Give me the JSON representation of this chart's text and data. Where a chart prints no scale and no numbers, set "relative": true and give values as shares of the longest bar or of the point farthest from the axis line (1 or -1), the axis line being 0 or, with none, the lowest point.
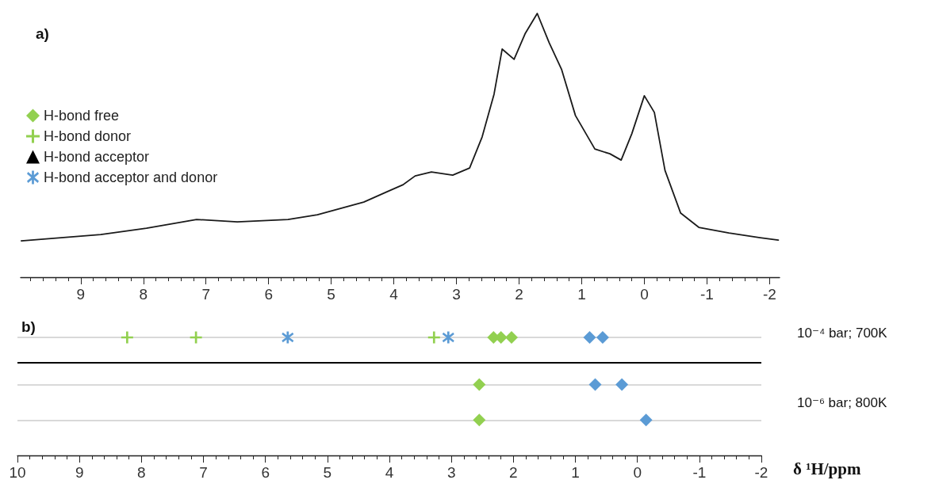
{
  "chart_data": [
    {
      "type": "line",
      "title": "a)",
      "relative": true,
      "xlim": [
        9.96,
        -2.16
      ],
      "xticks": [
        9,
        8,
        7,
        6,
        5,
        4,
        3,
        2,
        1,
        0,
        -1,
        -2
      ],
      "marker": "none",
      "line_style": "solid",
      "series": [
        {
          "color": "#1a1a1a",
          "x": [
            9.95,
            8.68,
            7.95,
            7.15,
            6.5,
            5.69,
            5.22,
            4.48,
            4.11,
            3.85,
            3.66,
            3.4,
            3.06,
            2.79,
            2.59,
            2.4,
            2.27,
            2.08,
            1.9,
            1.71,
            1.52,
            1.32,
            1.1,
            0.79,
            0.55,
            0.37,
            0.2,
            0,
            -0.16,
            -0.33,
            -0.58,
            -0.87,
            -1.35,
            -1.85,
            -2.14
          ],
          "values": [
            0.138,
            0.162,
            0.186,
            0.219,
            0.21,
            0.219,
            0.237,
            0.285,
            0.324,
            0.351,
            0.384,
            0.399,
            0.387,
            0.414,
            0.532,
            0.694,
            0.865,
            0.826,
            0.925,
            1,
            0.889,
            0.787,
            0.613,
            0.486,
            0.468,
            0.444,
            0.544,
            0.688,
            0.625,
            0.405,
            0.243,
            0.189,
            0.168,
            0.15,
            0.141
          ]
        }
      ]
    },
    {
      "type": "scatter",
      "title": "b)",
      "xlabel": "δ ¹H/ppm",
      "relative": true,
      "xlim": [
        10,
        -2
      ],
      "xticks": [
        10,
        9,
        8,
        7,
        6,
        5,
        4,
        3,
        2,
        1,
        0,
        -1,
        -2
      ],
      "legend": "top left",
      "annotations": [
        "10⁻⁴ bar; 700K",
        "10⁻⁶ bar; 800K"
      ],
      "ref_lines": [
        {
          "axis": "y",
          "value": 1,
          "color": "#d9d9d9"
        },
        {
          "axis": "y",
          "value": 0.79,
          "color": "#000000"
        },
        {
          "axis": "y",
          "value": 0.6,
          "color": "#d9d9d9"
        },
        {
          "axis": "y",
          "value": 0.3,
          "color": "#d9d9d9"
        }
      ],
      "series": [
        {
          "name": "H-bond free",
          "marker": "diamond",
          "x": [
            2.32,
            2.2,
            2.03,
            0.77,
            0.56,
            2.55,
            0.68,
            0.25,
            2.55,
            -0.14
          ],
          "values": [
            1,
            1,
            1,
            1,
            1,
            0.6,
            0.6,
            0.6,
            0.3,
            0.3
          ],
          "colors": [
            "#92d050",
            "#92d050",
            "#92d050",
            "#5b9bd5",
            "#5b9bd5",
            "#92d050",
            "#5b9bd5",
            "#5b9bd5",
            "#92d050",
            "#5b9bd5"
          ]
        },
        {
          "name": "H-bond donor",
          "marker": "cross",
          "color": "#92d050",
          "x": [
            8.23,
            7.12,
            3.28
          ],
          "values": [
            1,
            1,
            1
          ]
        },
        {
          "name": "H-bond acceptor",
          "marker": "triangle",
          "color": "#000000"
        },
        {
          "name": "H-bond acceptor and donor",
          "color": "#5b9bd5",
          "x": [
            5.64,
            3.05
          ],
          "values": [
            1,
            1
          ]
        }
      ]
    }
  ]
}
